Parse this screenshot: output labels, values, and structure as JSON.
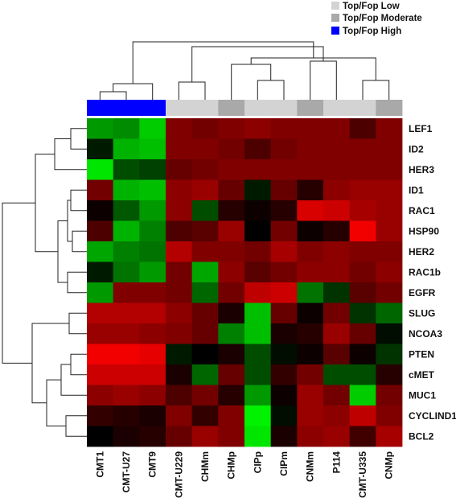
{
  "chart_data": {
    "type": "heatmap",
    "title": "",
    "legend": {
      "placement": "top-right",
      "items": [
        {
          "label": "Top/Fop Low",
          "color": "#d3d3d3"
        },
        {
          "label": "Top/Fop Moderate",
          "color": "#a9a9a9"
        },
        {
          "label": "Top/Fop High",
          "color": "#0000ff"
        }
      ]
    },
    "columns": [
      "CMT1",
      "CMT-U27",
      "CMT9",
      "CMT-U229",
      "CHMm",
      "CHMp",
      "CIPp",
      "CIPm",
      "CNMm",
      "P114",
      "CMT-U335",
      "CNMp"
    ],
    "column_groups": [
      "Top/Fop High",
      "Top/Fop High",
      "Top/Fop High",
      "Top/Fop Low",
      "Top/Fop Low",
      "Top/Fop Moderate",
      "Top/Fop Low",
      "Top/Fop Low",
      "Top/Fop Moderate",
      "Top/Fop Low",
      "Top/Fop Low",
      "Top/Fop Moderate"
    ],
    "rows": [
      "LEF1",
      "ID2",
      "HER3",
      "ID1",
      "RAC1",
      "HSP90",
      "HER2",
      "RAC1b",
      "EGFR",
      "SLUG",
      "NCOA3",
      "PTEN",
      "cMET",
      "MUC1",
      "CYCLIND1",
      "BCL2"
    ],
    "color_scale": {
      "low": "#00ff00",
      "mid": "#000000",
      "high": "#ff0000",
      "min": -1,
      "max": 1
    },
    "values": [
      [
        -0.6,
        -0.55,
        -0.8,
        0.5,
        0.45,
        0.5,
        0.55,
        0.5,
        0.5,
        0.5,
        0.3,
        0.5
      ],
      [
        -0.1,
        -0.7,
        -0.75,
        0.5,
        0.5,
        0.45,
        0.3,
        0.45,
        0.5,
        0.5,
        0.5,
        0.5
      ],
      [
        -0.9,
        -0.3,
        -0.25,
        0.4,
        0.45,
        0.5,
        0.5,
        0.5,
        0.5,
        0.5,
        0.5,
        0.5
      ],
      [
        0.45,
        -0.7,
        -0.75,
        0.55,
        0.6,
        0.4,
        -0.1,
        0.4,
        0.15,
        0.55,
        0.6,
        0.6
      ],
      [
        0.05,
        -0.35,
        -0.6,
        0.55,
        -0.3,
        0.15,
        0.05,
        0.15,
        0.85,
        0.8,
        0.65,
        0.6
      ],
      [
        0.3,
        -0.7,
        -0.5,
        0.3,
        0.35,
        0.6,
        0.0,
        0.45,
        0.05,
        0.15,
        0.95,
        0.6
      ],
      [
        -0.65,
        -0.5,
        -0.45,
        0.7,
        0.5,
        0.5,
        0.45,
        0.65,
        0.5,
        0.55,
        0.5,
        0.5
      ],
      [
        -0.1,
        -0.45,
        -0.6,
        0.45,
        -0.65,
        0.55,
        0.35,
        0.45,
        0.55,
        0.55,
        0.45,
        0.55
      ],
      [
        -0.6,
        0.5,
        0.5,
        0.45,
        -0.4,
        0.45,
        0.75,
        0.8,
        -0.45,
        -0.2,
        0.35,
        0.45
      ],
      [
        0.7,
        0.7,
        0.7,
        0.55,
        0.4,
        0.1,
        -0.75,
        0.4,
        0.05,
        0.45,
        -0.2,
        -0.4
      ],
      [
        0.6,
        0.6,
        0.55,
        0.5,
        0.4,
        -0.5,
        -0.75,
        0.1,
        0.15,
        0.6,
        0.4,
        -0.05
      ],
      [
        0.95,
        0.95,
        0.9,
        -0.1,
        0.0,
        0.1,
        -0.3,
        -0.05,
        0.05,
        0.35,
        0.05,
        -0.2
      ],
      [
        0.8,
        0.8,
        0.8,
        0.1,
        -0.4,
        0.4,
        -0.3,
        0.2,
        0.45,
        -0.3,
        -0.3,
        0.15
      ],
      [
        0.55,
        0.6,
        0.55,
        0.3,
        0.45,
        0.15,
        -0.6,
        0.05,
        0.6,
        0.45,
        -0.8,
        0.45
      ],
      [
        0.2,
        0.15,
        0.1,
        0.5,
        0.2,
        0.5,
        -0.95,
        -0.05,
        0.6,
        0.55,
        0.75,
        0.5
      ],
      [
        0.0,
        0.1,
        0.15,
        0.4,
        0.6,
        0.5,
        -0.9,
        0.1,
        0.55,
        0.6,
        0.25,
        0.65
      ]
    ],
    "column_dendrogram": true,
    "row_dendrogram": true
  }
}
